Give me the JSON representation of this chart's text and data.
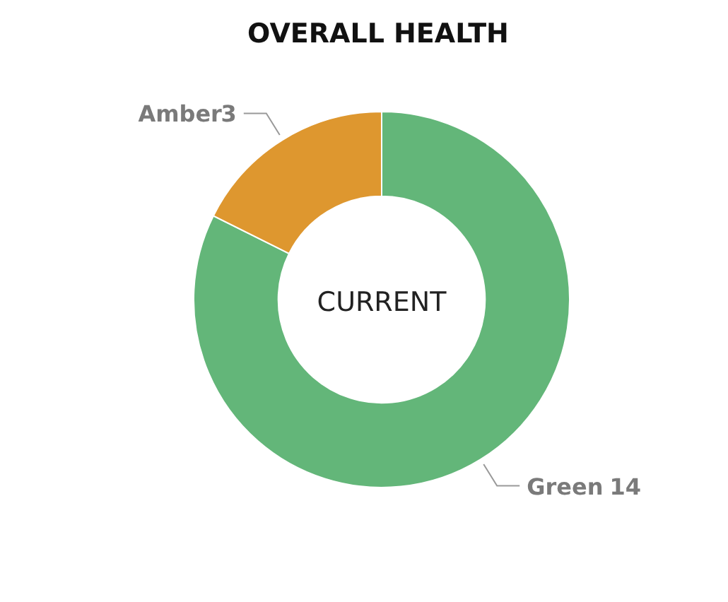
{
  "chart_data": {
    "type": "donut",
    "title": "OVERALL HEALTH",
    "categories": [
      "Green",
      "Amber"
    ],
    "values": [
      14,
      3
    ],
    "colors": [
      "#63b679",
      "#de972f"
    ],
    "data_labels": true,
    "annotations": [
      "CURRENT"
    ]
  }
}
